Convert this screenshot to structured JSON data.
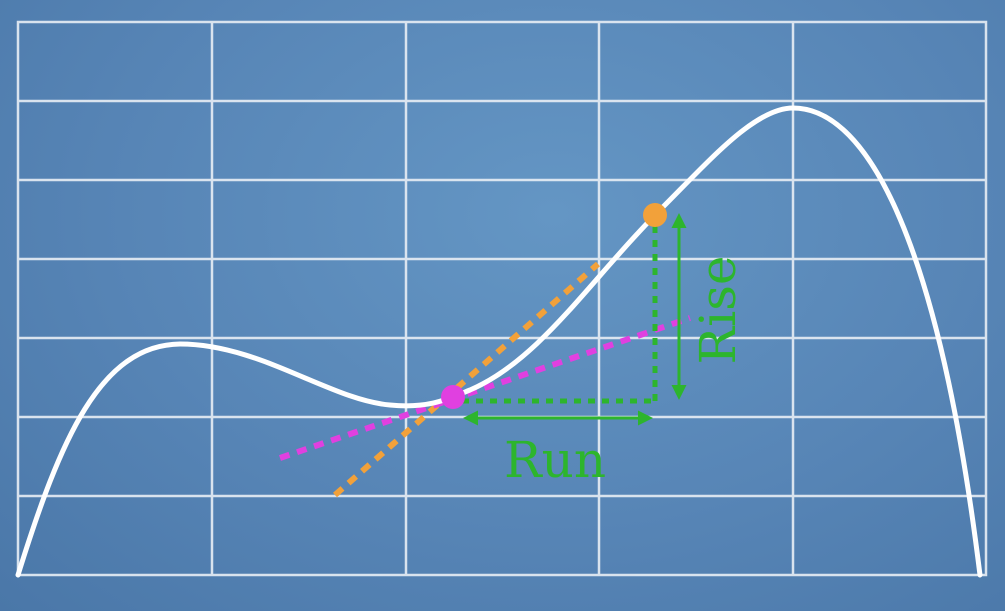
{
  "diagram": {
    "rise_label": "Rise",
    "run_label": "Run",
    "colors": {
      "background": "#5a8aba",
      "grid": "#e8eef5",
      "curve": "#ffffff",
      "secant": "#f2a13a",
      "tangent": "#e040e0",
      "rise_run": "#2db52d",
      "point_a": "#e040e0",
      "point_b": "#f2a13a"
    }
  }
}
